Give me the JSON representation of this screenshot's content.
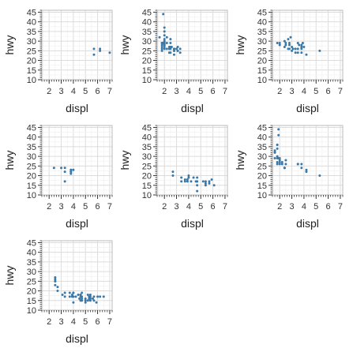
{
  "chart_data": [
    {
      "type": "scatter",
      "xlabel": "displ",
      "ylabel": "hwy",
      "xlim": [
        1.4,
        7.2
      ],
      "ylim": [
        10,
        46
      ],
      "xticks": [
        2,
        3,
        4,
        5,
        6,
        7
      ],
      "yticks": [
        10,
        15,
        20,
        25,
        30,
        35,
        40,
        45
      ],
      "grid": true,
      "point_color": "#3a78a8",
      "points": [
        [
          5.7,
          26
        ],
        [
          5.7,
          23
        ],
        [
          6.2,
          26
        ],
        [
          6.2,
          25
        ],
        [
          7.0,
          24
        ]
      ]
    },
    {
      "type": "scatter",
      "xlabel": "displ",
      "ylabel": "hwy",
      "xlim": [
        1.4,
        7.2
      ],
      "ylim": [
        10,
        46
      ],
      "xticks": [
        2,
        3,
        4,
        5,
        6,
        7
      ],
      "yticks": [
        10,
        15,
        20,
        25,
        30,
        35,
        40,
        45
      ],
      "grid": true,
      "point_color": "#3a78a8",
      "points": [
        [
          1.8,
          29
        ],
        [
          1.8,
          29
        ],
        [
          2.0,
          31
        ],
        [
          2.0,
          30
        ],
        [
          2.8,
          26
        ],
        [
          2.8,
          26
        ],
        [
          3.1,
          27
        ],
        [
          1.8,
          26
        ],
        [
          1.8,
          25
        ],
        [
          2.0,
          28
        ],
        [
          2.0,
          27
        ],
        [
          2.8,
          25
        ],
        [
          2.8,
          25
        ],
        [
          3.1,
          25
        ],
        [
          3.1,
          25
        ],
        [
          2.0,
          33
        ],
        [
          2.0,
          35
        ],
        [
          2.0,
          37
        ],
        [
          1.9,
          44
        ],
        [
          1.8,
          29
        ],
        [
          2.0,
          26
        ],
        [
          2.2,
          29
        ],
        [
          2.4,
          27
        ],
        [
          2.5,
          31
        ],
        [
          2.5,
          29
        ],
        [
          3.0,
          26
        ],
        [
          3.3,
          24
        ],
        [
          2.0,
          28
        ],
        [
          2.4,
          24
        ],
        [
          1.6,
          32
        ],
        [
          1.8,
          28
        ],
        [
          2.2,
          26
        ],
        [
          2.4,
          26
        ],
        [
          2.5,
          27
        ],
        [
          2.5,
          24
        ],
        [
          3.3,
          26
        ],
        [
          2.0,
          29
        ],
        [
          2.8,
          23
        ],
        [
          2.0,
          29
        ],
        [
          2.5,
          26
        ],
        [
          1.9,
          29
        ],
        [
          2.5,
          27
        ],
        [
          1.8,
          27
        ],
        [
          2.6,
          27
        ],
        [
          2.2,
          32
        ]
      ]
    },
    {
      "type": "scatter",
      "xlabel": "displ",
      "ylabel": "hwy",
      "xlim": [
        1.4,
        7.2
      ],
      "ylim": [
        10,
        46
      ],
      "xticks": [
        2,
        3,
        4,
        5,
        6,
        7
      ],
      "yticks": [
        10,
        15,
        20,
        25,
        30,
        35,
        40,
        45
      ],
      "grid": true,
      "point_color": "#3a78a8",
      "points": [
        [
          1.8,
          29
        ],
        [
          2.0,
          29
        ],
        [
          2.0,
          28
        ],
        [
          2.4,
          27
        ],
        [
          2.4,
          30
        ],
        [
          2.5,
          29
        ],
        [
          2.5,
          28
        ],
        [
          2.7,
          26
        ],
        [
          2.7,
          31
        ],
        [
          2.8,
          29
        ],
        [
          2.8,
          26
        ],
        [
          2.8,
          28
        ],
        [
          2.9,
          32
        ],
        [
          3.0,
          27
        ],
        [
          3.0,
          25
        ],
        [
          3.1,
          26
        ],
        [
          3.3,
          24
        ],
        [
          3.3,
          26
        ],
        [
          3.5,
          26
        ],
        [
          3.5,
          29
        ],
        [
          3.5,
          24
        ],
        [
          3.6,
          28
        ],
        [
          3.8,
          26
        ],
        [
          3.8,
          27
        ],
        [
          3.8,
          27
        ],
        [
          3.8,
          28
        ],
        [
          3.8,
          24
        ],
        [
          3.9,
          29
        ],
        [
          4.0,
          27
        ],
        [
          4.2,
          23
        ],
        [
          5.3,
          25
        ]
      ]
    },
    {
      "type": "scatter",
      "xlabel": "displ",
      "ylabel": "hwy",
      "xlim": [
        1.4,
        7.2
      ],
      "ylim": [
        10,
        46
      ],
      "xticks": [
        2,
        3,
        4,
        5,
        6,
        7
      ],
      "yticks": [
        10,
        15,
        20,
        25,
        30,
        35,
        40,
        45
      ],
      "grid": true,
      "point_color": "#3a78a8",
      "points": [
        [
          2.4,
          24
        ],
        [
          3.0,
          24
        ],
        [
          3.3,
          24
        ],
        [
          3.3,
          22
        ],
        [
          3.3,
          17
        ],
        [
          3.8,
          22
        ],
        [
          3.8,
          21
        ],
        [
          3.8,
          23
        ],
        [
          3.8,
          23
        ],
        [
          4.0,
          23
        ],
        [
          3.8,
          22
        ]
      ]
    },
    {
      "type": "scatter",
      "xlabel": "displ",
      "ylabel": "hwy",
      "xlim": [
        1.4,
        7.2
      ],
      "ylim": [
        10,
        46
      ],
      "xticks": [
        2,
        3,
        4,
        5,
        6,
        7
      ],
      "yticks": [
        10,
        15,
        20,
        25,
        30,
        35,
        40,
        45
      ],
      "grid": true,
      "point_color": "#3a78a8",
      "points": [
        [
          2.7,
          20
        ],
        [
          2.7,
          22
        ],
        [
          3.4,
          17
        ],
        [
          3.4,
          19
        ],
        [
          3.7,
          18
        ],
        [
          3.7,
          17
        ],
        [
          3.9,
          18
        ],
        [
          3.9,
          17
        ],
        [
          4.0,
          20
        ],
        [
          4.0,
          19
        ],
        [
          4.2,
          17
        ],
        [
          4.4,
          19
        ],
        [
          4.6,
          17
        ],
        [
          4.7,
          17
        ],
        [
          4.7,
          15
        ],
        [
          4.7,
          19
        ],
        [
          4.7,
          17
        ],
        [
          4.7,
          12
        ],
        [
          5.2,
          17
        ],
        [
          5.4,
          16
        ],
        [
          5.4,
          17
        ],
        [
          5.4,
          15
        ],
        [
          5.7,
          17
        ],
        [
          5.7,
          16
        ],
        [
          5.9,
          18
        ],
        [
          6.1,
          15
        ]
      ]
    },
    {
      "type": "scatter",
      "xlabel": "displ",
      "ylabel": "hwy",
      "xlim": [
        1.4,
        7.2
      ],
      "ylim": [
        10,
        46
      ],
      "xticks": [
        2,
        3,
        4,
        5,
        6,
        7
      ],
      "yticks": [
        10,
        15,
        20,
        25,
        30,
        35,
        40,
        45
      ],
      "grid": true,
      "point_color": "#3a78a8",
      "points": [
        [
          1.6,
          33
        ],
        [
          1.6,
          32
        ],
        [
          1.6,
          32
        ],
        [
          1.6,
          29
        ],
        [
          1.6,
          32
        ],
        [
          1.8,
          34
        ],
        [
          1.8,
          36
        ],
        [
          1.8,
          36
        ],
        [
          1.8,
          29
        ],
        [
          1.8,
          26
        ],
        [
          1.8,
          27
        ],
        [
          1.8,
          30
        ],
        [
          1.9,
          44
        ],
        [
          1.9,
          41
        ],
        [
          1.9,
          29
        ],
        [
          2.0,
          26
        ],
        [
          2.0,
          28
        ],
        [
          2.0,
          29
        ],
        [
          2.0,
          27
        ],
        [
          2.2,
          26
        ],
        [
          2.4,
          24
        ],
        [
          2.4,
          24
        ],
        [
          2.5,
          26
        ],
        [
          3.5,
          26
        ],
        [
          3.5,
          26
        ],
        [
          3.8,
          24
        ],
        [
          3.8,
          26
        ],
        [
          4.2,
          22
        ],
        [
          4.2,
          23
        ],
        [
          5.3,
          20
        ],
        [
          2.5,
          28
        ],
        [
          2.4,
          24
        ],
        [
          2.2,
          27
        ]
      ]
    },
    {
      "type": "scatter",
      "xlabel": "displ",
      "ylabel": "hwy",
      "xlim": [
        1.4,
        7.2
      ],
      "ylim": [
        10,
        46
      ],
      "xticks": [
        2,
        3,
        4,
        5,
        6,
        7
      ],
      "yticks": [
        10,
        15,
        20,
        25,
        30,
        35,
        40,
        45
      ],
      "grid": true,
      "point_color": "#3a78a8",
      "points": [
        [
          2.5,
          27
        ],
        [
          2.5,
          25
        ],
        [
          2.5,
          23
        ],
        [
          2.5,
          26
        ],
        [
          2.5,
          25
        ],
        [
          2.7,
          22
        ],
        [
          2.7,
          20
        ],
        [
          3.1,
          18
        ],
        [
          3.3,
          17
        ],
        [
          3.3,
          19
        ],
        [
          3.7,
          17
        ],
        [
          3.7,
          19
        ],
        [
          3.9,
          17
        ],
        [
          3.9,
          18
        ],
        [
          4.0,
          19
        ],
        [
          4.0,
          17
        ],
        [
          4.0,
          19
        ],
        [
          4.2,
          17
        ],
        [
          4.4,
          18
        ],
        [
          4.6,
          17
        ],
        [
          4.6,
          18
        ],
        [
          4.7,
          17
        ],
        [
          4.7,
          16
        ],
        [
          4.7,
          15
        ],
        [
          4.7,
          19
        ],
        [
          5.2,
          18
        ],
        [
          5.2,
          15
        ],
        [
          5.3,
          16
        ],
        [
          5.3,
          17
        ],
        [
          5.4,
          15
        ],
        [
          5.4,
          16
        ],
        [
          5.4,
          18
        ],
        [
          5.7,
          17
        ],
        [
          5.7,
          15
        ],
        [
          6.0,
          17
        ],
        [
          6.2,
          17
        ],
        [
          5.0,
          15
        ],
        [
          5.0,
          16
        ],
        [
          4.5,
          16
        ],
        [
          4.6,
          15
        ],
        [
          5.9,
          14
        ],
        [
          6.5,
          17
        ],
        [
          5.6,
          16
        ],
        [
          5.4,
          17
        ],
        [
          5.0,
          14
        ],
        [
          4.0,
          14
        ]
      ]
    }
  ]
}
